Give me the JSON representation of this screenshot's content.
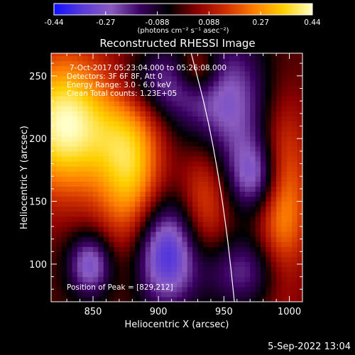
{
  "chart_data": {
    "type": "heatmap",
    "title": "Reconstructed RHESSI Image",
    "xlabel": "Heliocentric X (arcsec)",
    "ylabel": "Heliocentric Y (arcsec)",
    "xlim": [
      818,
      1010
    ],
    "ylim": [
      70,
      268
    ],
    "x_ticks": [
      850,
      900,
      950,
      1000
    ],
    "y_ticks": [
      100,
      150,
      200,
      250
    ],
    "colorbar": {
      "range": [
        -0.44,
        0.44
      ],
      "ticks": [
        "-0.44",
        "-0.27",
        "-0.088",
        "0.088",
        "0.27",
        "0.44"
      ],
      "unit_label": "(photons cm⁻² s⁻¹ asec⁻²)",
      "colors": [
        "#1010ff",
        "#5a3ad8",
        "#8a5cc0",
        "#3a0060",
        "#000000",
        "#8b0000",
        "#d03000",
        "#ff8000",
        "#ffd000",
        "#ffffc8"
      ]
    },
    "annotations": {
      "time_range": "7-Oct-2017 05:23:04.000 to 05:26:08.000",
      "detectors": "Detectors: 3F 6F 8F, Att 0",
      "energy": "Energy Range: 3.0 - 6.0 keV",
      "method": "Clean    Total counts: 1.23E+05",
      "peak": "Position of Peak = [829,212]"
    },
    "peak_position": [
      829,
      212
    ],
    "limb_curve": [
      [
        925,
        268
      ],
      [
        937,
        220
      ],
      [
        946,
        170
      ],
      [
        953,
        120
      ],
      [
        958,
        70
      ]
    ],
    "sources": [
      {
        "x": 829,
        "y": 212,
        "amp": 0.44,
        "sx": 28,
        "sy": 40
      },
      {
        "x": 905,
        "y": 110,
        "amp": -0.4,
        "sx": 18,
        "sy": 30
      },
      {
        "x": 848,
        "y": 100,
        "amp": -0.3,
        "sx": 12,
        "sy": 18
      },
      {
        "x": 880,
        "y": 175,
        "amp": 0.32,
        "sx": 18,
        "sy": 50
      },
      {
        "x": 950,
        "y": 225,
        "amp": -0.28,
        "sx": 25,
        "sy": 40
      },
      {
        "x": 975,
        "y": 170,
        "amp": -0.26,
        "sx": 14,
        "sy": 20
      },
      {
        "x": 935,
        "y": 155,
        "amp": 0.22,
        "sx": 14,
        "sy": 40
      },
      {
        "x": 995,
        "y": 150,
        "amp": 0.28,
        "sx": 14,
        "sy": 55
      },
      {
        "x": 965,
        "y": 95,
        "amp": -0.2,
        "sx": 25,
        "sy": 20
      },
      {
        "x": 900,
        "y": 245,
        "amp": -0.22,
        "sx": 25,
        "sy": 20
      },
      {
        "x": 930,
        "y": 255,
        "amp": 0.25,
        "sx": 12,
        "sy": 15
      }
    ]
  },
  "footer": {
    "date": "5-Sep-2022 13:04"
  }
}
